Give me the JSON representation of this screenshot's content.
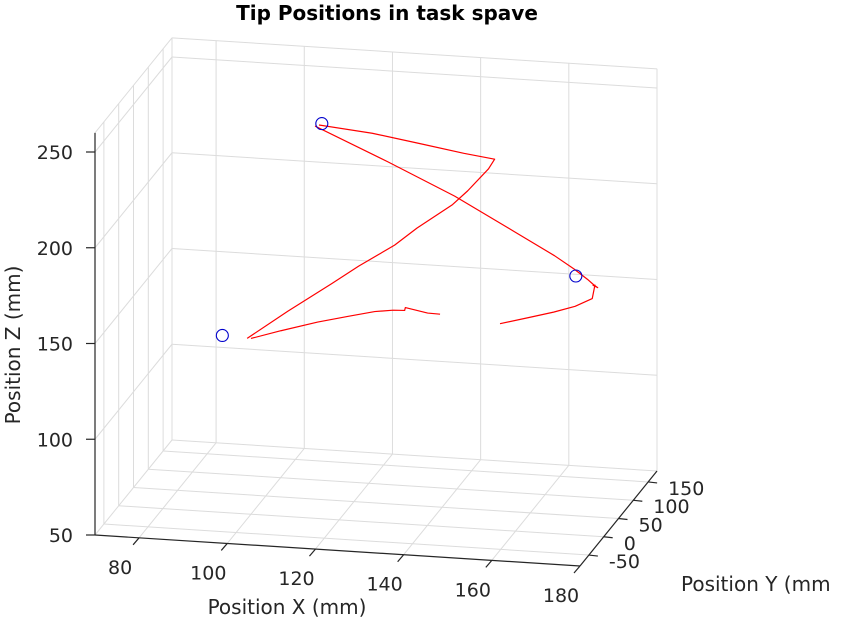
{
  "chart_data": {
    "type": "line3d",
    "title": "Tip Positions in task spave",
    "xlabel": "Position X (mm)",
    "ylabel": "Position Y (mm",
    "zlabel": "Position Z (mm)",
    "xlim": [
      70,
      180
    ],
    "ylim": [
      -80,
      180
    ],
    "zlim": [
      50,
      260
    ],
    "x_ticks": [
      "80",
      "100",
      "120",
      "140",
      "160",
      "180"
    ],
    "y_ticks": [
      "-50",
      "0",
      "50",
      "100",
      "150"
    ],
    "z_ticks": [
      "50",
      "100",
      "150",
      "200",
      "250"
    ],
    "grid": true,
    "colors": {
      "trajectory": "#ff0000",
      "markers": "#0000cc",
      "grid": "#dcdcdc",
      "axes": "#262626"
    },
    "series": [
      {
        "marker": "line",
        "points": [
          [
            98.4,
            23.8,
            137.0
          ],
          [
            104.9,
            28.0,
            141.2
          ],
          [
            112.8,
            34.7,
            145.6
          ],
          [
            119.1,
            44.4,
            147.7
          ],
          [
            124.4,
            54.6,
            149.0
          ],
          [
            127.8,
            66.2,
            148.0
          ],
          [
            129.6,
            78.5,
            145.8
          ],
          [
            128.8,
            91.0,
            143.9
          ],
          [
            128.2,
            101.5,
            142.7
          ],
          [
            132.4,
            114.3,
            138.0
          ],
          [
            134.6,
            123.4,
            136.0
          ]
        ]
      },
      {
        "marker": "line",
        "points": [
          [
            97.7,
            21.4,
            137.4
          ],
          [
            106.4,
            29.0,
            151.4
          ],
          [
            115.9,
            36.0,
            165.9
          ],
          [
            121.7,
            40.6,
            175.0
          ],
          [
            129.7,
            42.9,
            186.7
          ],
          [
            134.4,
            48.8,
            195.2
          ],
          [
            142.1,
            53.9,
            207.6
          ],
          [
            145.1,
            60.2,
            214.0
          ],
          [
            149.2,
            69.7,
            224.3
          ],
          [
            150.1,
            76.9,
            228.1
          ],
          [
            143.0,
            78.5,
            229.8
          ],
          [
            132.8,
            82.5,
            232.6
          ],
          [
            121.7,
            86.2,
            235.7
          ],
          [
            109.5,
            88.3,
            237.8
          ]
        ]
      },
      {
        "marker": "line",
        "points": [
          [
            108.6,
            88.3,
            237.1
          ],
          [
            124.6,
            97.2,
            219.0
          ],
          [
            139.2,
            104.2,
            202.0
          ],
          [
            152.5,
            106.8,
            185.0
          ],
          [
            161.4,
            110.8,
            172.9
          ],
          [
            165.4,
            117.3,
            165.3
          ],
          [
            168.1,
            122.5,
            159.3
          ],
          [
            169.3,
            126.3,
            155.8
          ],
          [
            169.6,
            134.5,
            152.9
          ],
          [
            168.0,
            141.3,
            152.7
          ]
        ]
      },
      {
        "marker": "line",
        "points": [
          [
            168.5,
            141.9,
            152.9
          ],
          [
            169.4,
            119.2,
            150.1
          ],
          [
            166.6,
            103.1,
            148.7
          ],
          [
            162.7,
            88.4,
            147.9
          ],
          [
            157.8,
            74.4,
            146.9
          ],
          [
            152.4,
            60.8,
            145.6
          ]
        ]
      },
      {
        "marker": "circle",
        "points": [
          [
            110.2,
            87.4,
            238.8
          ],
          [
            92.0,
            22.4,
            137.9
          ],
          [
            164.3,
            139.7,
            157.2
          ]
        ]
      }
    ]
  }
}
